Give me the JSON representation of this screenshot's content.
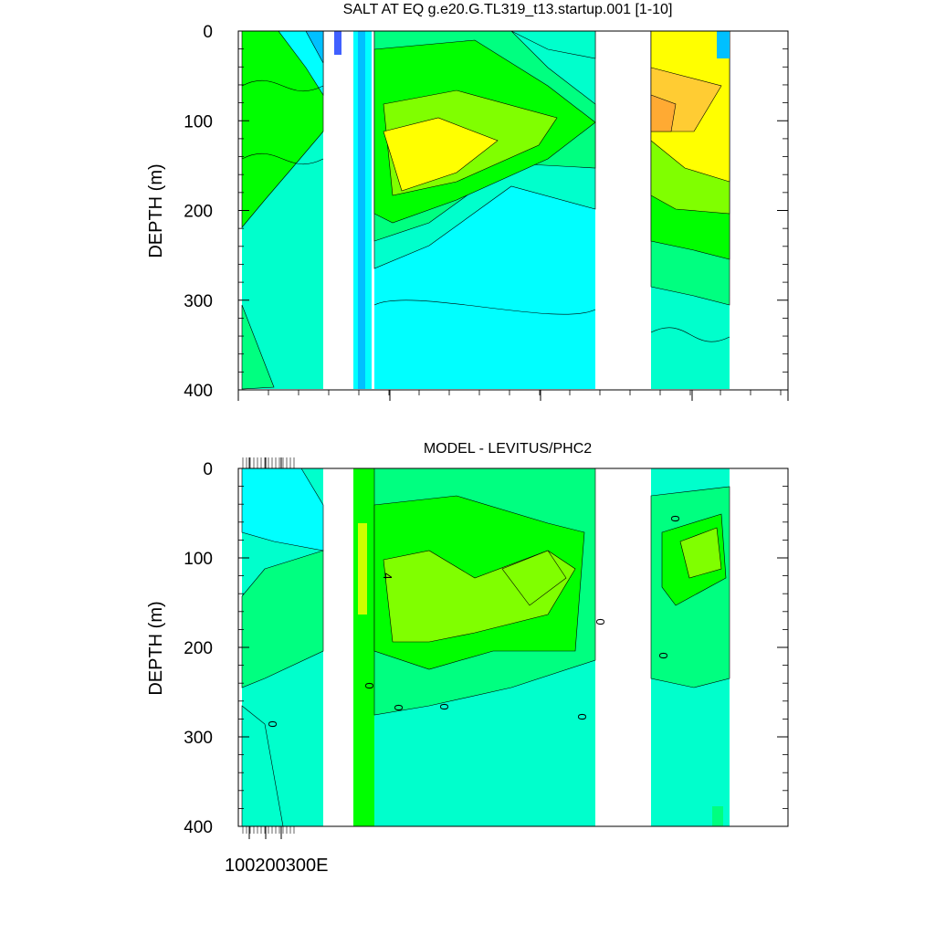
{
  "chart_data": [
    {
      "type": "heatmap",
      "title": "SALT AT EQ g.e20.G.TL319_t13.startup.001 [1-10]",
      "ylabel": "DEPTH (m)",
      "ylim": [
        0,
        400
      ],
      "y_inverted": true,
      "yticks": [
        "0",
        "100",
        "200",
        "300",
        "400"
      ],
      "palette": [
        "#0000a0",
        "#4060ff",
        "#00c0ff",
        "#00ffff",
        "#00ffcc",
        "#00ff80",
        "#00ff00",
        "#80ff00",
        "#ccff00",
        "#ffff00",
        "#ffcc33",
        "#ffaa33"
      ],
      "masked_color": "#ffffff"
    },
    {
      "type": "heatmap",
      "title": "MODEL - LEVITUS/PHC2",
      "ylabel": "DEPTH (m)",
      "ylim": [
        0,
        400
      ],
      "y_inverted": true,
      "yticks": [
        "0",
        "100",
        "200",
        "300",
        "400"
      ],
      "xtick_label": "100200300E",
      "contour_labels": [
        "4",
        "0",
        "0",
        "0",
        "0",
        "0",
        "0",
        "0",
        "0"
      ],
      "palette": [
        "#00ffff",
        "#00ffcc",
        "#00ff80",
        "#00ff00",
        "#80ff00",
        "#ccff00",
        "#ffff00"
      ],
      "masked_color": "#ffffff"
    }
  ]
}
